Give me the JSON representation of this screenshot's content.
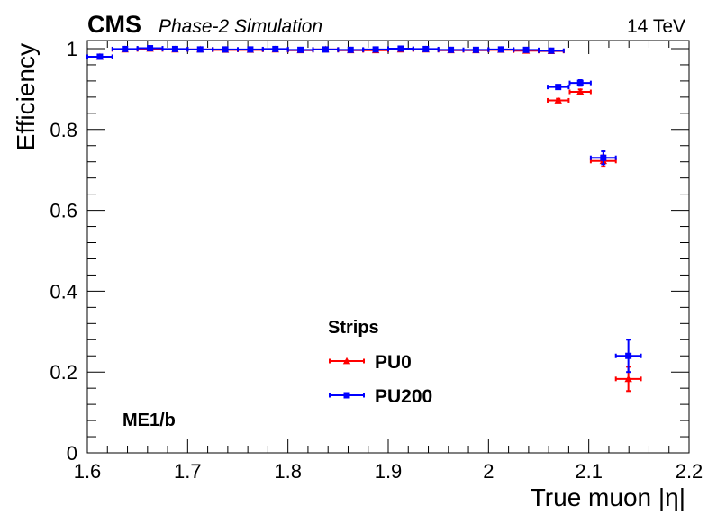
{
  "header": {
    "experiment": "CMS",
    "subtitle": "Phase-2 Simulation",
    "energy": "14 TeV"
  },
  "chart_data": {
    "type": "scatter",
    "xlabel": "True muon |η|",
    "ylabel": "Efficiency",
    "xlim": [
      1.6,
      2.2
    ],
    "ylim": [
      0,
      1.02
    ],
    "x_ticks": [
      "1.6",
      "1.7",
      "1.8",
      "1.9",
      "2",
      "2.1",
      "2.2"
    ],
    "y_ticks": [
      "0",
      "0.2",
      "0.4",
      "0.6",
      "0.8",
      "1"
    ],
    "annotation": "ME1/b",
    "legend": {
      "title": "Strips",
      "placement": "bottom-center"
    },
    "series": [
      {
        "name": "PU0",
        "color": "#ff0000",
        "marker": "triangle",
        "points": [
          {
            "x": 1.6125,
            "y": 0.98,
            "xerr": 0.0125,
            "yerr": 0.004
          },
          {
            "x": 1.6375,
            "y": 0.998,
            "xerr": 0.0125,
            "yerr": 0.002
          },
          {
            "x": 1.6625,
            "y": 1.0,
            "xerr": 0.0125,
            "yerr": 0.002
          },
          {
            "x": 1.6875,
            "y": 0.998,
            "xerr": 0.0125,
            "yerr": 0.002
          },
          {
            "x": 1.7125,
            "y": 0.998,
            "xerr": 0.0125,
            "yerr": 0.002
          },
          {
            "x": 1.7375,
            "y": 0.997,
            "xerr": 0.0125,
            "yerr": 0.002
          },
          {
            "x": 1.7625,
            "y": 0.997,
            "xerr": 0.0125,
            "yerr": 0.002
          },
          {
            "x": 1.7875,
            "y": 0.998,
            "xerr": 0.0125,
            "yerr": 0.002
          },
          {
            "x": 1.8125,
            "y": 0.996,
            "xerr": 0.0125,
            "yerr": 0.002
          },
          {
            "x": 1.8375,
            "y": 0.998,
            "xerr": 0.0125,
            "yerr": 0.002
          },
          {
            "x": 1.8625,
            "y": 0.996,
            "xerr": 0.0125,
            "yerr": 0.002
          },
          {
            "x": 1.8875,
            "y": 0.996,
            "xerr": 0.0125,
            "yerr": 0.002
          },
          {
            "x": 1.9125,
            "y": 0.998,
            "xerr": 0.0125,
            "yerr": 0.002
          },
          {
            "x": 1.9375,
            "y": 0.998,
            "xerr": 0.0125,
            "yerr": 0.002
          },
          {
            "x": 1.9625,
            "y": 0.996,
            "xerr": 0.0125,
            "yerr": 0.002
          },
          {
            "x": 1.9875,
            "y": 0.996,
            "xerr": 0.0125,
            "yerr": 0.002
          },
          {
            "x": 2.0125,
            "y": 0.997,
            "xerr": 0.0125,
            "yerr": 0.002
          },
          {
            "x": 2.0375,
            "y": 0.995,
            "xerr": 0.0125,
            "yerr": 0.002
          },
          {
            "x": 2.0625,
            "y": 0.994,
            "xerr": 0.0125,
            "yerr": 0.002
          },
          {
            "x": 2.0695,
            "y": 0.872,
            "xerr": 0.0105,
            "yerr": 0.004
          },
          {
            "x": 2.0915,
            "y": 0.893,
            "xerr": 0.0105,
            "yerr": 0.006
          },
          {
            "x": 2.1145,
            "y": 0.722,
            "xerr": 0.0125,
            "yerr": 0.014
          },
          {
            "x": 2.1395,
            "y": 0.183,
            "xerr": 0.0125,
            "yerr": 0.03
          }
        ]
      },
      {
        "name": "PU200",
        "color": "#0000ff",
        "marker": "square",
        "points": [
          {
            "x": 1.6125,
            "y": 0.98,
            "xerr": 0.0125,
            "yerr": 0.004
          },
          {
            "x": 1.6375,
            "y": 0.999,
            "xerr": 0.0125,
            "yerr": 0.002
          },
          {
            "x": 1.6625,
            "y": 1.001,
            "xerr": 0.0125,
            "yerr": 0.002
          },
          {
            "x": 1.6875,
            "y": 0.999,
            "xerr": 0.0125,
            "yerr": 0.002
          },
          {
            "x": 1.7125,
            "y": 0.998,
            "xerr": 0.0125,
            "yerr": 0.002
          },
          {
            "x": 1.7375,
            "y": 0.998,
            "xerr": 0.0125,
            "yerr": 0.002
          },
          {
            "x": 1.7625,
            "y": 0.998,
            "xerr": 0.0125,
            "yerr": 0.002
          },
          {
            "x": 1.7875,
            "y": 0.999,
            "xerr": 0.0125,
            "yerr": 0.002
          },
          {
            "x": 1.8125,
            "y": 0.997,
            "xerr": 0.0125,
            "yerr": 0.002
          },
          {
            "x": 1.8375,
            "y": 0.998,
            "xerr": 0.0125,
            "yerr": 0.002
          },
          {
            "x": 1.8625,
            "y": 0.997,
            "xerr": 0.0125,
            "yerr": 0.002
          },
          {
            "x": 1.8875,
            "y": 0.998,
            "xerr": 0.0125,
            "yerr": 0.002
          },
          {
            "x": 1.9125,
            "y": 1.0,
            "xerr": 0.0125,
            "yerr": 0.002
          },
          {
            "x": 1.9375,
            "y": 0.999,
            "xerr": 0.0125,
            "yerr": 0.002
          },
          {
            "x": 1.9625,
            "y": 0.997,
            "xerr": 0.0125,
            "yerr": 0.002
          },
          {
            "x": 1.9875,
            "y": 0.997,
            "xerr": 0.0125,
            "yerr": 0.002
          },
          {
            "x": 2.0125,
            "y": 0.998,
            "xerr": 0.0125,
            "yerr": 0.002
          },
          {
            "x": 2.0375,
            "y": 0.997,
            "xerr": 0.0125,
            "yerr": 0.002
          },
          {
            "x": 2.0625,
            "y": 0.995,
            "xerr": 0.0125,
            "yerr": 0.002
          },
          {
            "x": 2.0695,
            "y": 0.905,
            "xerr": 0.0105,
            "yerr": 0.004
          },
          {
            "x": 2.0915,
            "y": 0.915,
            "xerr": 0.0105,
            "yerr": 0.007
          },
          {
            "x": 2.1145,
            "y": 0.73,
            "xerr": 0.0125,
            "yerr": 0.016
          },
          {
            "x": 2.1395,
            "y": 0.24,
            "xerr": 0.0125,
            "yerr": 0.04
          }
        ]
      }
    ]
  }
}
